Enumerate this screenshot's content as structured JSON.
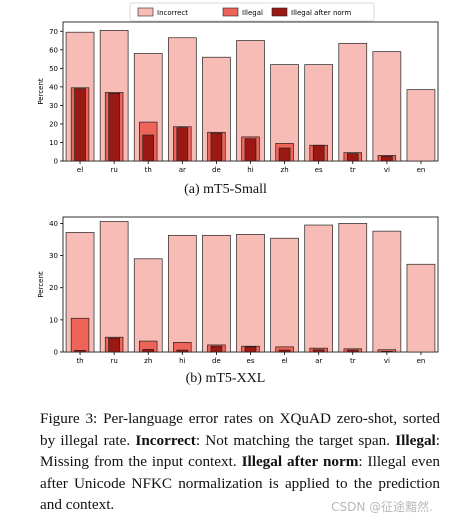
{
  "colors": {
    "incorrect": "#f8bcb6",
    "illegal": "#ee6459",
    "illegal_after_norm": "#9b1914",
    "edge": "#222222"
  },
  "chart_data": [
    {
      "type": "bar",
      "ylabel": "Percent",
      "ylim": [
        0,
        75
      ],
      "yticks": [
        0,
        10,
        20,
        30,
        40,
        50,
        60,
        70
      ],
      "legend_position": "top-center",
      "categories": [
        "el",
        "ru",
        "th",
        "ar",
        "de",
        "hi",
        "zh",
        "es",
        "tr",
        "vi",
        "en"
      ],
      "series": [
        {
          "name": "Incorrect",
          "values": [
            69.5,
            70.5,
            58.0,
            66.5,
            56.0,
            65.0,
            52.0,
            52.0,
            63.5,
            59.0,
            38.5
          ]
        },
        {
          "name": "Illegal",
          "values": [
            39.5,
            37.0,
            21.0,
            18.5,
            15.5,
            13.0,
            9.5,
            8.5,
            4.5,
            3.0,
            0.0
          ]
        },
        {
          "name": "Illegal after norm",
          "values": [
            39.0,
            36.5,
            14.0,
            18.0,
            15.0,
            12.0,
            7.0,
            8.5,
            4.0,
            2.5,
            0.0
          ]
        }
      ]
    },
    {
      "type": "bar",
      "ylabel": "Percent",
      "ylim": [
        0,
        42
      ],
      "yticks": [
        0,
        10,
        20,
        30,
        40
      ],
      "categories": [
        "th",
        "ru",
        "zh",
        "hi",
        "de",
        "es",
        "el",
        "ar",
        "tr",
        "vi",
        "en"
      ],
      "series": [
        {
          "name": "Incorrect",
          "values": [
            37.2,
            40.6,
            29.0,
            36.3,
            36.3,
            36.6,
            35.4,
            39.5,
            40.0,
            37.6,
            27.3
          ]
        },
        {
          "name": "Illegal",
          "values": [
            10.5,
            4.6,
            3.4,
            3.0,
            2.2,
            1.8,
            1.6,
            1.2,
            1.0,
            0.7,
            0.0
          ]
        },
        {
          "name": "Illegal after norm",
          "values": [
            0.5,
            4.3,
            0.8,
            0.6,
            1.8,
            1.6,
            0.6,
            0.7,
            0.6,
            0.2,
            0.0
          ]
        }
      ]
    }
  ],
  "subcaptions": {
    "a": "(a) mT5-Small",
    "b": "(b) mT5-XXL"
  },
  "caption": {
    "fig_label": "Figure 3:",
    "intro": " Per-language error rates on XQuAD zero-shot, sorted by illegal rate. ",
    "incorrect_term": "Incorrect",
    "incorrect_def": ": Not matching the target span. ",
    "illegal_term": "Illegal",
    "illegal_def": ": Missing from the input context. ",
    "norm_term": "Illegal after norm",
    "norm_def": ": Illegal even after Unicode NFKC normalization is applied to the prediction and context."
  },
  "watermark": "CSDN @征途黯然."
}
